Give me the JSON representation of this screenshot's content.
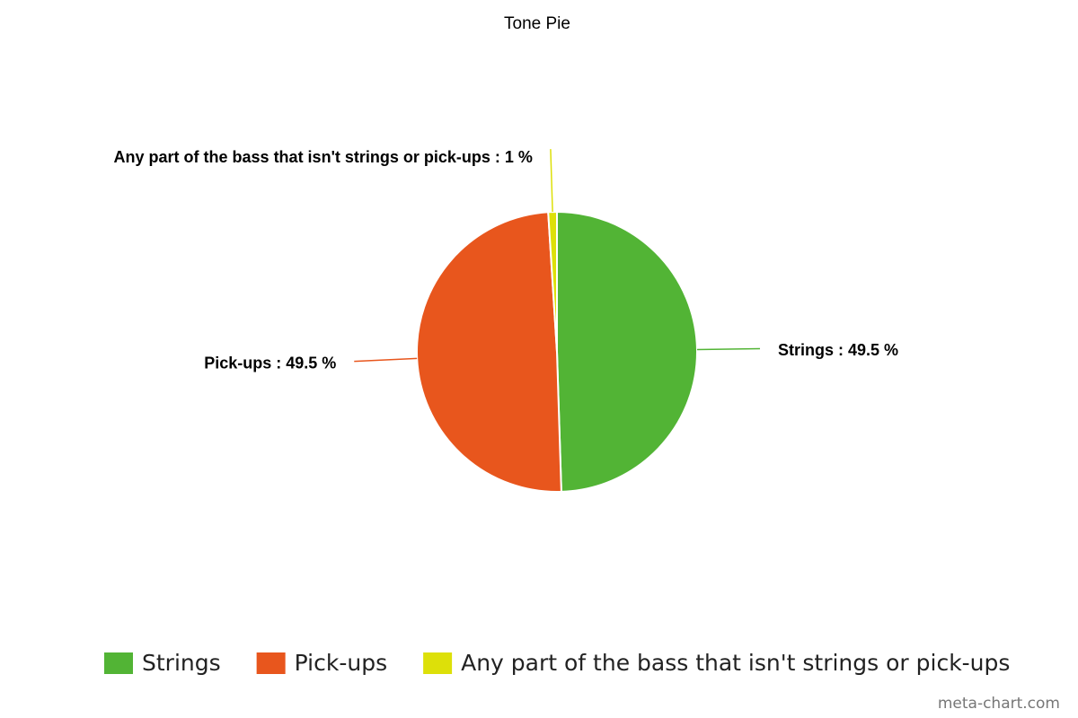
{
  "chart_data": {
    "type": "pie",
    "title": "Tone Pie",
    "categories": [
      "Strings",
      "Pick-ups",
      "Any part of the bass that isn't strings or pick-ups"
    ],
    "values": [
      49.5,
      49.5,
      1
    ],
    "value_labels": [
      "Strings : 49.5 %",
      "Pick-ups : 49.5 %",
      "Any part of the bass that isn't strings or pick-ups : 1 %"
    ],
    "colors": [
      "#52b435",
      "#e8561d",
      "#dde009"
    ],
    "legend": "bottom",
    "credit": "meta-chart.com"
  }
}
